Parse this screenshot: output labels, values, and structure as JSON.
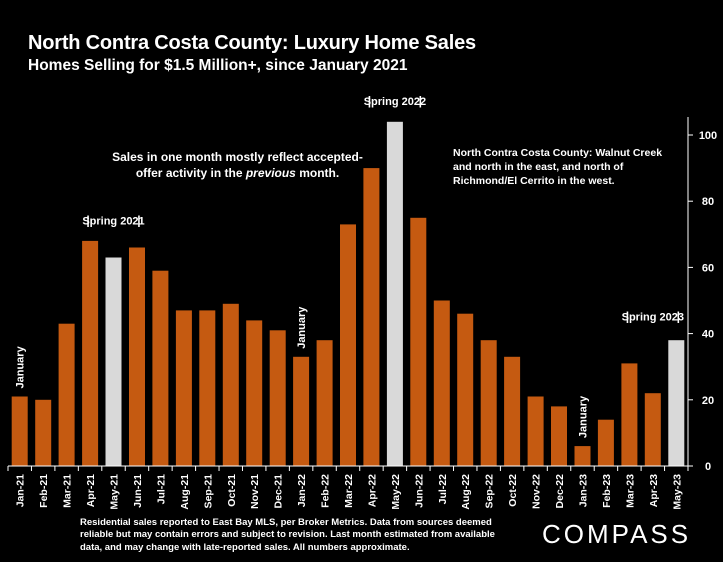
{
  "title": "North Contra Costa County: Luxury Home Sales",
  "subtitle": "Homes Selling for $1.5 Million+, since January 2021",
  "note_left": {
    "line1": "Sales in one month mostly reflect accepted-",
    "line2_prefix": "offer activity in the ",
    "line2_emph": "previous",
    "line2_suffix": " month."
  },
  "note_right": "North Contra Costa County: Walnut Creek and north in the east, and north of Richmond/El Cerrito in the west.",
  "footer": "Residential sales reported to East Bay MLS, per Broker Metrics. Data from sources deemed reliable but may contain errors and subject to revision.  Last month estimated from available data, and may change with late-reported sales. All numbers approximate.",
  "brand": "COMPASS",
  "colors": {
    "background": "#000000",
    "bar_primary": "#C55A11",
    "bar_highlight": "#D9D9D9",
    "axis": "#FFFFFF"
  },
  "chart_data": {
    "type": "bar",
    "categories": [
      "Jan-21",
      "Feb-21",
      "Mar-21",
      "Apr-21",
      "May-21",
      "Jun-21",
      "Jul-21",
      "Aug-21",
      "Sep-21",
      "Oct-21",
      "Nov-21",
      "Dec-21",
      "Jan-22",
      "Feb-22",
      "Mar-22",
      "Apr-22",
      "May-22",
      "Jun-22",
      "Jul-22",
      "Aug-22",
      "Sep-22",
      "Oct-22",
      "Nov-22",
      "Dec-22",
      "Jan-23",
      "Feb-23",
      "Mar-23",
      "Apr-23",
      "May-23"
    ],
    "values": [
      21,
      20,
      43,
      68,
      63,
      66,
      59,
      47,
      47,
      49,
      44,
      41,
      33,
      38,
      73,
      90,
      104,
      75,
      50,
      46,
      38,
      33,
      21,
      18,
      6,
      14,
      31,
      22,
      38
    ],
    "highlighted": [
      "May-21",
      "May-22",
      "May-23"
    ],
    "ylim": [
      0,
      110
    ],
    "yticks": [
      0,
      20,
      40,
      60,
      80,
      100
    ],
    "y_axis_side": "right",
    "grid": false,
    "annotations": [
      {
        "text": "January",
        "category": "Jan-21",
        "orientation": "vertical"
      },
      {
        "text": "January",
        "category": "Jan-22",
        "orientation": "vertical"
      },
      {
        "text": "January",
        "category": "Jan-23",
        "orientation": "vertical"
      }
    ],
    "seasons": [
      {
        "text": "Spring 2021",
        "from": "Apr-21",
        "to": "Jun-21",
        "value": 73
      },
      {
        "text": "Spring 2022",
        "from": "Apr-22",
        "to": "Jun-22",
        "value": 109
      },
      {
        "text": "Spring 2023",
        "from": "Mar-23",
        "to": "May-23",
        "value": 44
      }
    ]
  }
}
